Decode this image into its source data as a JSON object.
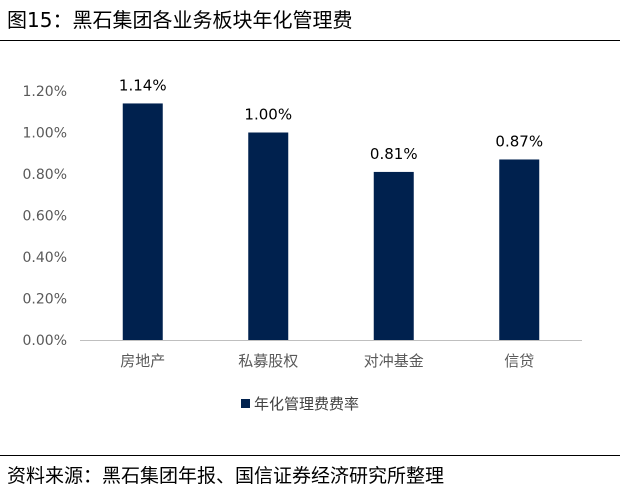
{
  "header": {
    "title": "图15：黑石集团各业务板块年化管理费"
  },
  "footer": {
    "source": "资料来源：黑石集团年报、国信证券经济研究所整理"
  },
  "colors": {
    "bar": "#00214e",
    "axis": "#bfbfbf",
    "tick_text": "#595959"
  },
  "chart_data": {
    "type": "bar",
    "title": "",
    "xlabel": "",
    "ylabel": "",
    "categories": [
      "房地产",
      "私募股权",
      "对冲基金",
      "信贷"
    ],
    "series": [
      {
        "name": "年化管理费费率",
        "values": [
          1.14,
          1.0,
          0.81,
          0.87
        ],
        "labels": [
          "1.14%",
          "1.00%",
          "0.81%",
          "0.87%"
        ]
      }
    ],
    "y_ticks": [
      0.0,
      0.2,
      0.4,
      0.6,
      0.8,
      1.0,
      1.2
    ],
    "y_tick_labels": [
      "0.00%",
      "0.20%",
      "0.40%",
      "0.60%",
      "0.80%",
      "1.00%",
      "1.20%"
    ],
    "ylim": [
      0,
      1.2
    ],
    "grid": false,
    "legend_position": "bottom"
  }
}
